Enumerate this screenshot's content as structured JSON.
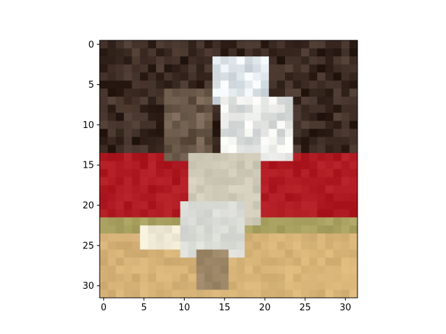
{
  "chart_data": {
    "type": "heatmap",
    "title": "",
    "xlabel": "",
    "ylabel": "",
    "grid": false,
    "xlim": [
      -0.5,
      31.5
    ],
    "ylim": [
      31.5,
      -0.5
    ],
    "xticks": [
      0,
      5,
      10,
      15,
      20,
      25,
      30
    ],
    "yticks": [
      0,
      5,
      10,
      15,
      20,
      25,
      30
    ],
    "xtick_labels": [
      "0",
      "5",
      "10",
      "15",
      "20",
      "25",
      "30"
    ],
    "ytick_labels": [
      "0",
      "5",
      "10",
      "15",
      "20",
      "25",
      "30"
    ],
    "image_size": [
      32,
      32
    ],
    "key_colors": {
      "dark_crowd": "#3a2a22",
      "red_wall": "#b01a22",
      "white_horse": "#dfe6ea",
      "olive_stripe": "#a9a160",
      "sand_floor": "#d4b076",
      "bright_sand": "#ecd08e"
    },
    "regions": [
      {
        "name": "dark-crowd",
        "color": "#3a2a22",
        "x": [
          0,
          31
        ],
        "y": [
          0,
          13
        ]
      },
      {
        "name": "red-wall",
        "color": "#b01a22",
        "x": [
          0,
          31
        ],
        "y": [
          14,
          21
        ]
      },
      {
        "name": "olive-stripe",
        "color": "#a9a160",
        "x": [
          0,
          31
        ],
        "y": [
          22,
          23
        ]
      },
      {
        "name": "sand-floor",
        "color": "#d4b076",
        "x": [
          0,
          31
        ],
        "y": [
          24,
          31
        ]
      },
      {
        "name": "horse-head",
        "color": "#dfe6ea",
        "x": [
          14,
          20
        ],
        "y": [
          2,
          7
        ]
      },
      {
        "name": "horse-body",
        "color": "#e4e6e4",
        "x": [
          15,
          23
        ],
        "y": [
          7,
          14
        ]
      },
      {
        "name": "rider",
        "color": "#6b5a4a",
        "x": [
          8,
          13
        ],
        "y": [
          6,
          14
        ]
      },
      {
        "name": "horse-legs",
        "color": "#cfcab8",
        "x": [
          11,
          19
        ],
        "y": [
          14,
          22
        ]
      },
      {
        "name": "horse-lower",
        "color": "#d9dbd6",
        "x": [
          10,
          17
        ],
        "y": [
          20,
          26
        ]
      },
      {
        "name": "hoof-left",
        "color": "#f0ead6",
        "x": [
          5,
          9
        ],
        "y": [
          23,
          25
        ]
      },
      {
        "name": "shadow",
        "color": "#9a8466",
        "x": [
          12,
          15
        ],
        "y": [
          26,
          30
        ]
      }
    ]
  }
}
